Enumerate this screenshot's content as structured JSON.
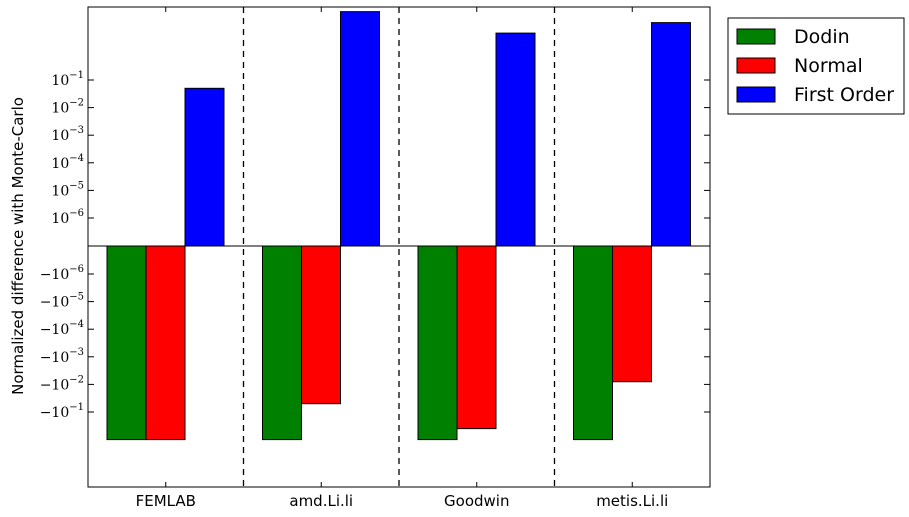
{
  "chart_data": {
    "type": "bar",
    "scale": "symlog",
    "ylabel": "Normalized difference with Monte-Carlo",
    "xlabel": "",
    "title": "",
    "categories": [
      "FEMLAB",
      "amd.Li.li",
      "Goodwin",
      "metis.Li.li"
    ],
    "series": [
      {
        "name": "Dodin",
        "color": "#008000",
        "values": [
          -1.0,
          -1.0,
          -1.0,
          -1.0
        ]
      },
      {
        "name": "Normal",
        "color": "#ff0000",
        "values": [
          -1.0,
          -0.05,
          -0.4,
          -0.008
        ]
      },
      {
        "name": "First Order",
        "color": "#0000ff",
        "values": [
          0.05,
          30,
          5,
          12
        ]
      }
    ],
    "yticks": [
      {
        "value": 0.1,
        "label": "10^-1"
      },
      {
        "value": 0.01,
        "label": "10^-2"
      },
      {
        "value": 0.001,
        "label": "10^-3"
      },
      {
        "value": 0.0001,
        "label": "10^-4"
      },
      {
        "value": 1e-05,
        "label": "10^-5"
      },
      {
        "value": 1e-06,
        "label": "10^-6"
      },
      {
        "value": -1e-06,
        "label": "-10^-6"
      },
      {
        "value": -1e-05,
        "label": "-10^-5"
      },
      {
        "value": -0.0001,
        "label": "-10^-4"
      },
      {
        "value": -0.001,
        "label": "-10^-3"
      },
      {
        "value": -0.01,
        "label": "-10^-2"
      },
      {
        "value": -0.1,
        "label": "-10^-1"
      }
    ],
    "ylim": [
      -30,
      30
    ],
    "linthresh": 1e-07,
    "grid": false,
    "separators": true,
    "legend_position": "outside-top-right"
  }
}
